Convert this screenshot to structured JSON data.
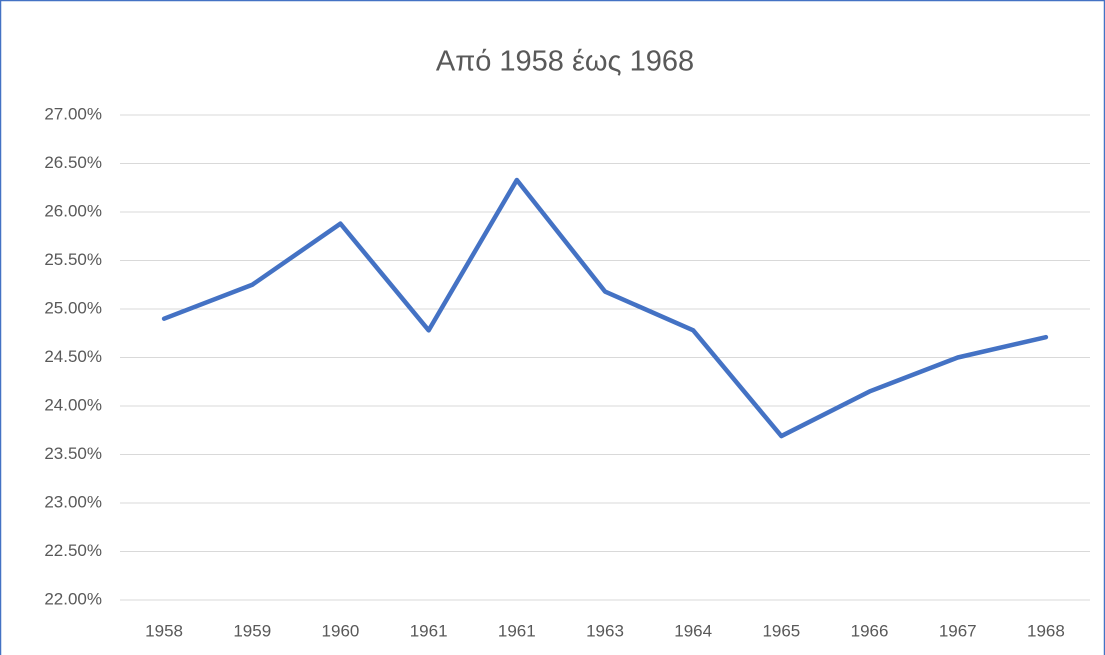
{
  "chart_data": {
    "type": "line",
    "title": "Από 1958 έως 1968",
    "categories": [
      "1958",
      "1959",
      "1960",
      "1961",
      "1961",
      "1963",
      "1964",
      "1965",
      "1966",
      "1967",
      "1968"
    ],
    "series": [
      {
        "name": null,
        "color": "#4472c4",
        "values": [
          24.9,
          25.25,
          25.88,
          24.78,
          26.33,
          25.18,
          24.78,
          23.69,
          24.15,
          24.5,
          24.71
        ]
      }
    ],
    "ylim": [
      22,
      27
    ],
    "yticks": [
      {
        "value": 22,
        "label": "22.00%"
      },
      {
        "value": 22.5,
        "label": "22.50%"
      },
      {
        "value": 23,
        "label": "23.00%"
      },
      {
        "value": 23.5,
        "label": "23.50%"
      },
      {
        "value": 24,
        "label": "24.00%"
      },
      {
        "value": 24.5,
        "label": "24.50%"
      },
      {
        "value": 25,
        "label": "25.00%"
      },
      {
        "value": 25.5,
        "label": "25.50%"
      },
      {
        "value": 26,
        "label": "26.00%"
      },
      {
        "value": 26.5,
        "label": "26.50%"
      },
      {
        "value": 27,
        "label": "27.00%"
      }
    ],
    "grid": true
  }
}
